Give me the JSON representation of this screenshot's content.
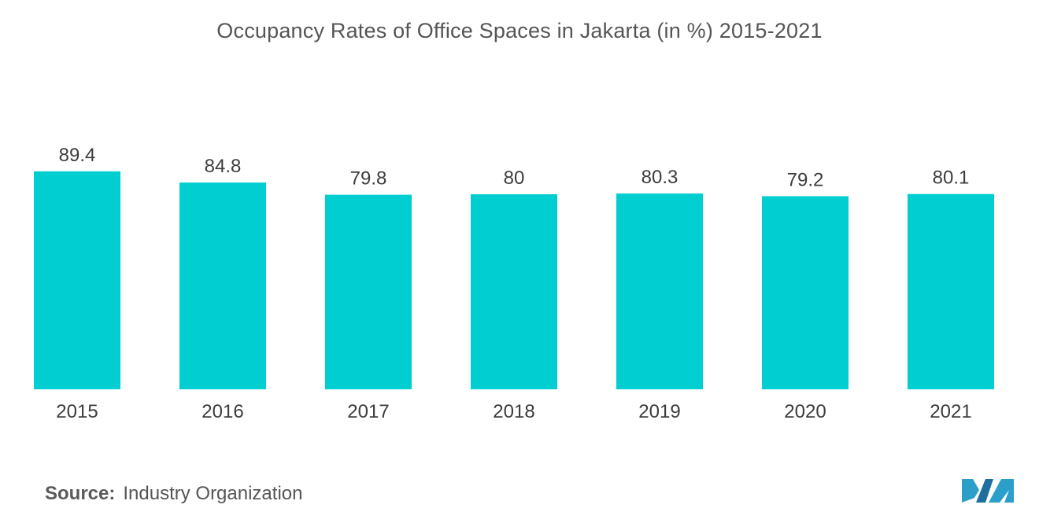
{
  "chart_data": {
    "type": "bar",
    "title": "Occupancy Rates of Office Spaces in Jakarta (in %) 2015-2021",
    "categories": [
      "2015",
      "2016",
      "2017",
      "2018",
      "2019",
      "2020",
      "2021"
    ],
    "values": [
      89.4,
      84.8,
      79.8,
      80,
      80.3,
      79.2,
      80.1
    ],
    "value_labels": [
      "89.4",
      "84.8",
      "79.8",
      "80",
      "80.3",
      "79.2",
      "80.1"
    ],
    "xlabel": "",
    "ylabel": "",
    "ylim": [
      0,
      100
    ],
    "grid": false,
    "legend": "none",
    "bar_color": "#00CED1"
  },
  "source": {
    "label": "Source:",
    "text": "Industry Organization"
  },
  "logo": {
    "icon": "mordor-intelligence-logo-icon",
    "colors": [
      "#2B9FC8",
      "#1F6F9E"
    ]
  }
}
